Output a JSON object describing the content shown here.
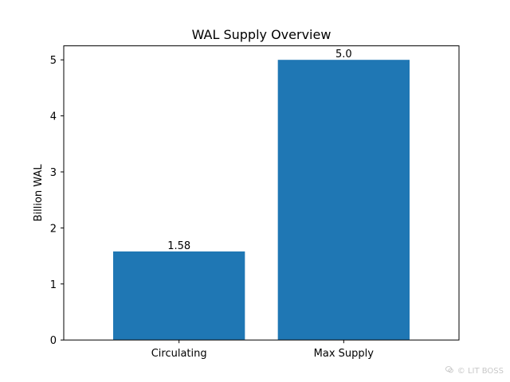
{
  "chart_data": {
    "type": "bar",
    "title": "WAL Supply Overview",
    "xlabel": "",
    "ylabel": "Billion WAL",
    "categories": [
      "Circulating",
      "Max Supply"
    ],
    "values": [
      1.58,
      5.0
    ],
    "value_labels": [
      "1.58",
      "5.0"
    ],
    "ylim": [
      0,
      5.25
    ],
    "yticks": [
      0,
      1,
      2,
      3,
      4,
      5
    ],
    "grid": false,
    "bar_color": "#1f77b4"
  },
  "watermark": {
    "icon": "wechat-icon",
    "symbol": "©",
    "text": "LIT BOSS"
  }
}
